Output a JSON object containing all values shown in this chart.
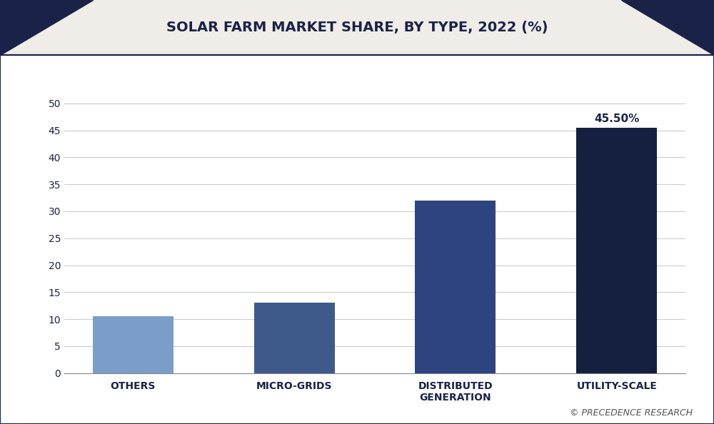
{
  "title": "SOLAR FARM MARKET SHARE, BY TYPE, 2022 (%)",
  "categories": [
    "OTHERS",
    "MICRO-GRIDS",
    "DISTRIBUTED\nGENERATION",
    "UTILITY-SCALE"
  ],
  "values": [
    10.5,
    13.0,
    32.0,
    45.5
  ],
  "bar_colors": [
    "#7b9ec9",
    "#3d5a8a",
    "#2e4480",
    "#152040"
  ],
  "annotation_bar": 3,
  "annotation_text": "45.50%",
  "ylim": [
    0,
    55
  ],
  "yticks": [
    0,
    5,
    10,
    15,
    20,
    25,
    30,
    35,
    40,
    45,
    50
  ],
  "background_color": "#ffffff",
  "plot_bg_color": "#ffffff",
  "header_bg_color": "#f0ede8",
  "grid_color": "#cccccc",
  "title_color": "#1a2347",
  "tick_label_color": "#1a2347",
  "annotation_color": "#1a2347",
  "watermark": "© PRECEDENCE RESEARCH",
  "watermark_color": "#555555",
  "title_fontsize": 14,
  "tick_fontsize": 10,
  "annotation_fontsize": 11,
  "bar_width": 0.5,
  "header_triangle_color": "#1a2347",
  "border_color": "#1a2347"
}
